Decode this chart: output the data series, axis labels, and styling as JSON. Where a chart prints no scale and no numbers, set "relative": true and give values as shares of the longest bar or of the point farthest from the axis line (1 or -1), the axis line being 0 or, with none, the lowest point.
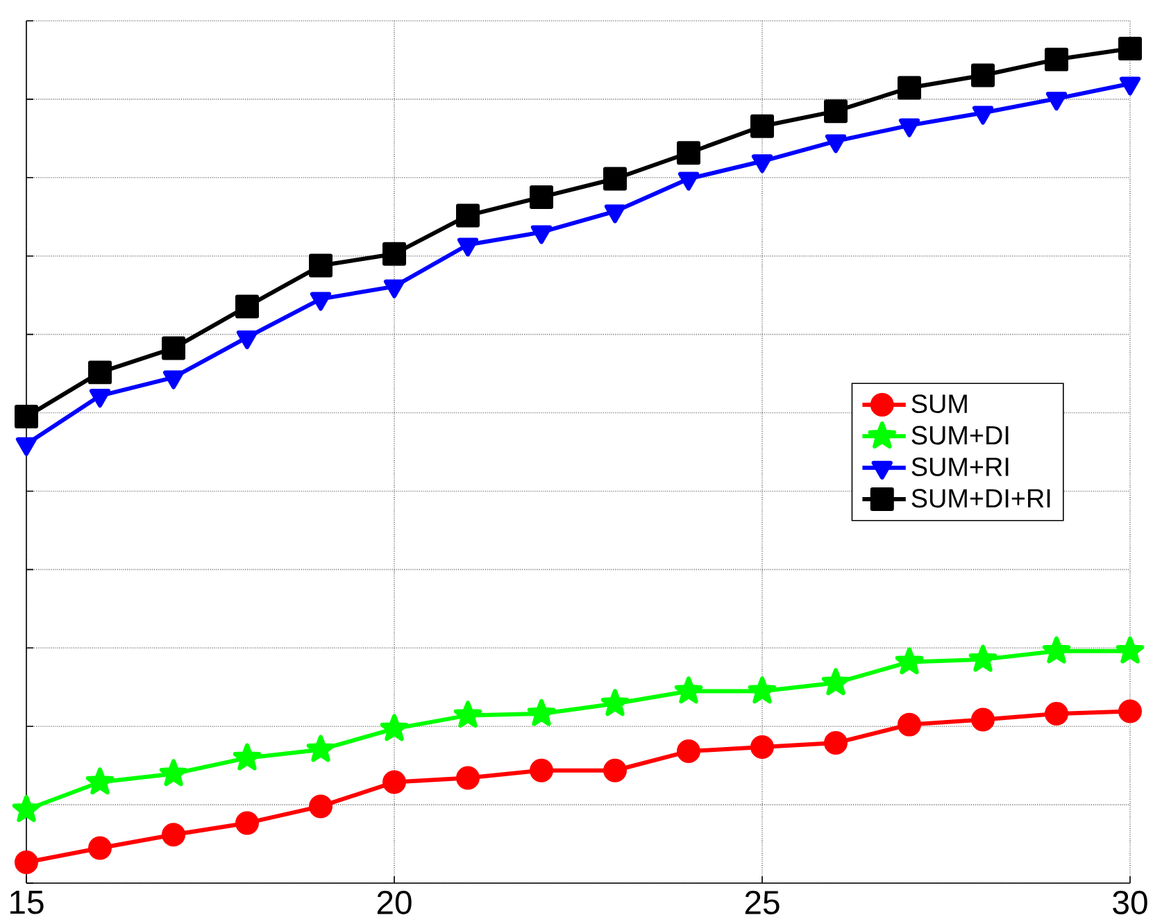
{
  "chart_data": {
    "type": "line",
    "relative": true,
    "x": [
      15,
      16,
      17,
      18,
      19,
      20,
      21,
      22,
      23,
      24,
      25,
      26,
      27,
      28,
      29,
      30
    ],
    "xlim": [
      15,
      30
    ],
    "xticks": [
      15,
      20,
      25,
      30
    ],
    "grid": true,
    "legend": "right",
    "line_style": "solid",
    "tick_labels": "x",
    "series": [
      {
        "name": "SUM",
        "color": "#ff0000",
        "marker": "circle",
        "values": [
          0.025,
          0.042,
          0.058,
          0.072,
          0.092,
          0.121,
          0.126,
          0.135,
          0.135,
          0.158,
          0.163,
          0.168,
          0.19,
          0.196,
          0.203,
          0.206
        ]
      },
      {
        "name": "SUM+DI",
        "color": "#00ff00",
        "marker": "star",
        "values": [
          0.088,
          0.121,
          0.131,
          0.15,
          0.16,
          0.185,
          0.201,
          0.203,
          0.215,
          0.23,
          0.23,
          0.24,
          0.265,
          0.268,
          0.278,
          0.278
        ]
      },
      {
        "name": "SUM+RI",
        "color": "#0000ff",
        "marker": "triangle",
        "values": [
          0.526,
          0.584,
          0.606,
          0.654,
          0.7,
          0.715,
          0.765,
          0.78,
          0.805,
          0.844,
          0.865,
          0.889,
          0.908,
          0.923,
          0.94,
          0.958
        ]
      },
      {
        "name": "SUM+DI+RI",
        "color": "#000000",
        "marker": "square",
        "values": [
          0.559,
          0.612,
          0.641,
          0.691,
          0.74,
          0.754,
          0.8,
          0.822,
          0.844,
          0.875,
          0.907,
          0.925,
          0.953,
          0.968,
          0.987,
          1
        ]
      }
    ]
  }
}
